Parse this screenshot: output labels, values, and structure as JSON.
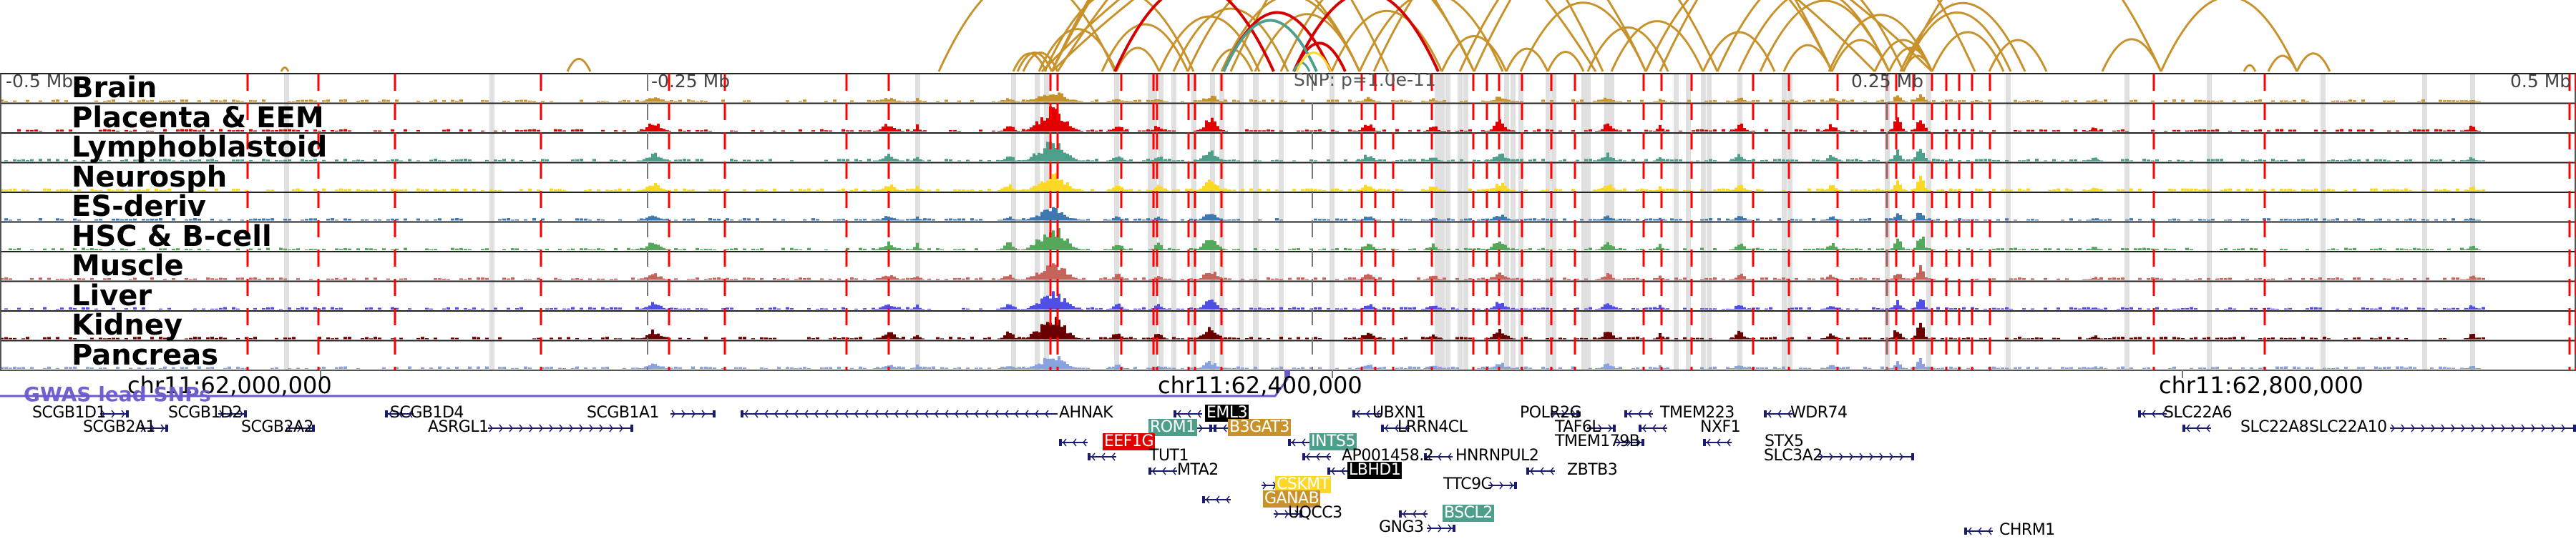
{
  "figure": {
    "region_labels": {
      "left_offset": "-0.5 Mb",
      "left_mid_offset": "-0.25 Mb",
      "right_mid_offset": "0.25 Mb",
      "right_offset": "0.5 Mb"
    },
    "snp_label": "SNP: p=1.0e-11",
    "gwas_track_label": "GWAS lead SNPs",
    "coordinates": [
      "chr11:62,000,000",
      "chr11:62,400,000",
      "chr11:62,800,000"
    ]
  },
  "tracks": [
    {
      "label": "Brain",
      "color": "#c8922b"
    },
    {
      "label": "Placenta & EEM",
      "color": "#e00000"
    },
    {
      "label": "Lymphoblastoid",
      "color": "#4e9e8c"
    },
    {
      "label": "Neurosph",
      "color": "#fdd825"
    },
    {
      "label": "ES-deriv",
      "color": "#3d79b0"
    },
    {
      "label": "HSC & B-cell",
      "color": "#54a75b"
    },
    {
      "label": "Muscle",
      "color": "#c5645b"
    },
    {
      "label": "Liver",
      "color": "#4f4fe5"
    },
    {
      "label": "Kidney",
      "color": "#6b0000"
    },
    {
      "label": "Pancreas",
      "color": "#8aa2e0"
    }
  ],
  "colors": {
    "arc_main": "#c8922b",
    "arc_red": "#d40000",
    "arc_teal": "#4e9e8c",
    "arc_yellow": "#fdd825",
    "snp_marker": "#ff0000",
    "highlight_band": "#e0e0e0",
    "gwas": "#6a5acd",
    "gene_structure": "#1a1a6e"
  },
  "genes": [
    {
      "name": "SCGB1D1",
      "strand": "+"
    },
    {
      "name": "SCGB2A1",
      "strand": "+"
    },
    {
      "name": "SCGB1D2",
      "strand": "+"
    },
    {
      "name": "SCGB2A2",
      "strand": "+"
    },
    {
      "name": "SCGB1D4",
      "strand": "-"
    },
    {
      "name": "ASRGL1",
      "strand": "+"
    },
    {
      "name": "SCGB1A1",
      "strand": "+"
    },
    {
      "name": "AHNAK",
      "strand": "-"
    },
    {
      "name": "EML3",
      "strand": "-",
      "highlight": "#000000"
    },
    {
      "name": "ROM1",
      "strand": "+",
      "highlight": "#4e9e8c"
    },
    {
      "name": "B3GAT3",
      "strand": "-",
      "highlight": "#c8922b"
    },
    {
      "name": "EEF1G",
      "strand": "-",
      "highlight": "#e00000"
    },
    {
      "name": "TUT1",
      "strand": "-"
    },
    {
      "name": "MTA2",
      "strand": "-"
    },
    {
      "name": "INTS5",
      "strand": "-",
      "highlight": "#4e9e8c"
    },
    {
      "name": "AP001458.2",
      "strand": "-"
    },
    {
      "name": "LBHD1",
      "strand": "-",
      "highlight": "#000000"
    },
    {
      "name": "CSKMT",
      "strand": "+",
      "highlight": "#fdd825"
    },
    {
      "name": "GANAB",
      "strand": "-",
      "highlight": "#c8922b"
    },
    {
      "name": "UQCC3",
      "strand": "+"
    },
    {
      "name": "UBXN1",
      "strand": "-"
    },
    {
      "name": "LRRN4CL",
      "strand": "-"
    },
    {
      "name": "HNRNPUL2",
      "strand": "-"
    },
    {
      "name": "TTC9C",
      "strand": "+"
    },
    {
      "name": "BSCL2",
      "strand": "-",
      "highlight": "#4e9e8c"
    },
    {
      "name": "GNG3",
      "strand": "+"
    },
    {
      "name": "POLR2G",
      "strand": "+"
    },
    {
      "name": "TAF6L",
      "strand": "+"
    },
    {
      "name": "TMEM179B",
      "strand": "+"
    },
    {
      "name": "ZBTB3",
      "strand": "-"
    },
    {
      "name": "TMEM223",
      "strand": "-"
    },
    {
      "name": "NXF1",
      "strand": "-"
    },
    {
      "name": "STX5",
      "strand": "-"
    },
    {
      "name": "WDR74",
      "strand": "-"
    },
    {
      "name": "SLC3A2",
      "strand": "+"
    },
    {
      "name": "CHRM1",
      "strand": "-"
    },
    {
      "name": "SLC22A6",
      "strand": "-"
    },
    {
      "name": "SLC22A8",
      "strand": "-"
    },
    {
      "name": "SLC22A10",
      "strand": "+"
    }
  ]
}
